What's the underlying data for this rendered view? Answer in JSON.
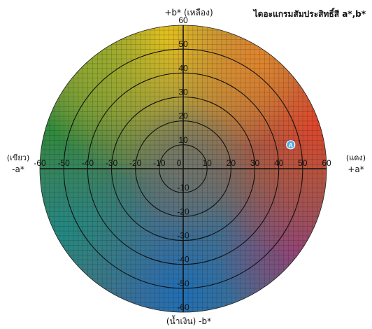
{
  "title": "ไดอะแกรมสัมประสิทธิ์สี a*,b*",
  "axes": {
    "top_label": "+b* (เหลือง)",
    "bottom_label": "(น้ำเงิน) -b*",
    "left_label_line1": "(เขียว)",
    "left_label_line2": "-a*",
    "right_label_line1": "(แดง)",
    "right_label_line2": "+a*",
    "a_ticks": [
      "-60",
      "-50",
      "-40",
      "-30",
      "-20",
      "-10",
      "0",
      "10",
      "20",
      "30",
      "40",
      "50",
      "60"
    ],
    "b_ticks_positive": [
      "60",
      "50",
      "40",
      "30",
      "20",
      "10"
    ],
    "b_ticks_negative": [
      "-10",
      "-20",
      "-30",
      "-40",
      "-50",
      "-60"
    ],
    "range": [
      -60,
      60
    ],
    "ring_values": [
      10,
      20,
      30,
      40,
      50
    ]
  },
  "marker": {
    "label": "A",
    "a": 45,
    "b": 10,
    "color": "#4aa8e8"
  },
  "colors": {
    "yellow": "#e8c21c",
    "red": "#e0442a",
    "green": "#2e8a3c",
    "blue": "#1f6fb5",
    "gray_center": "#6e7168",
    "grid": "#111111"
  }
}
